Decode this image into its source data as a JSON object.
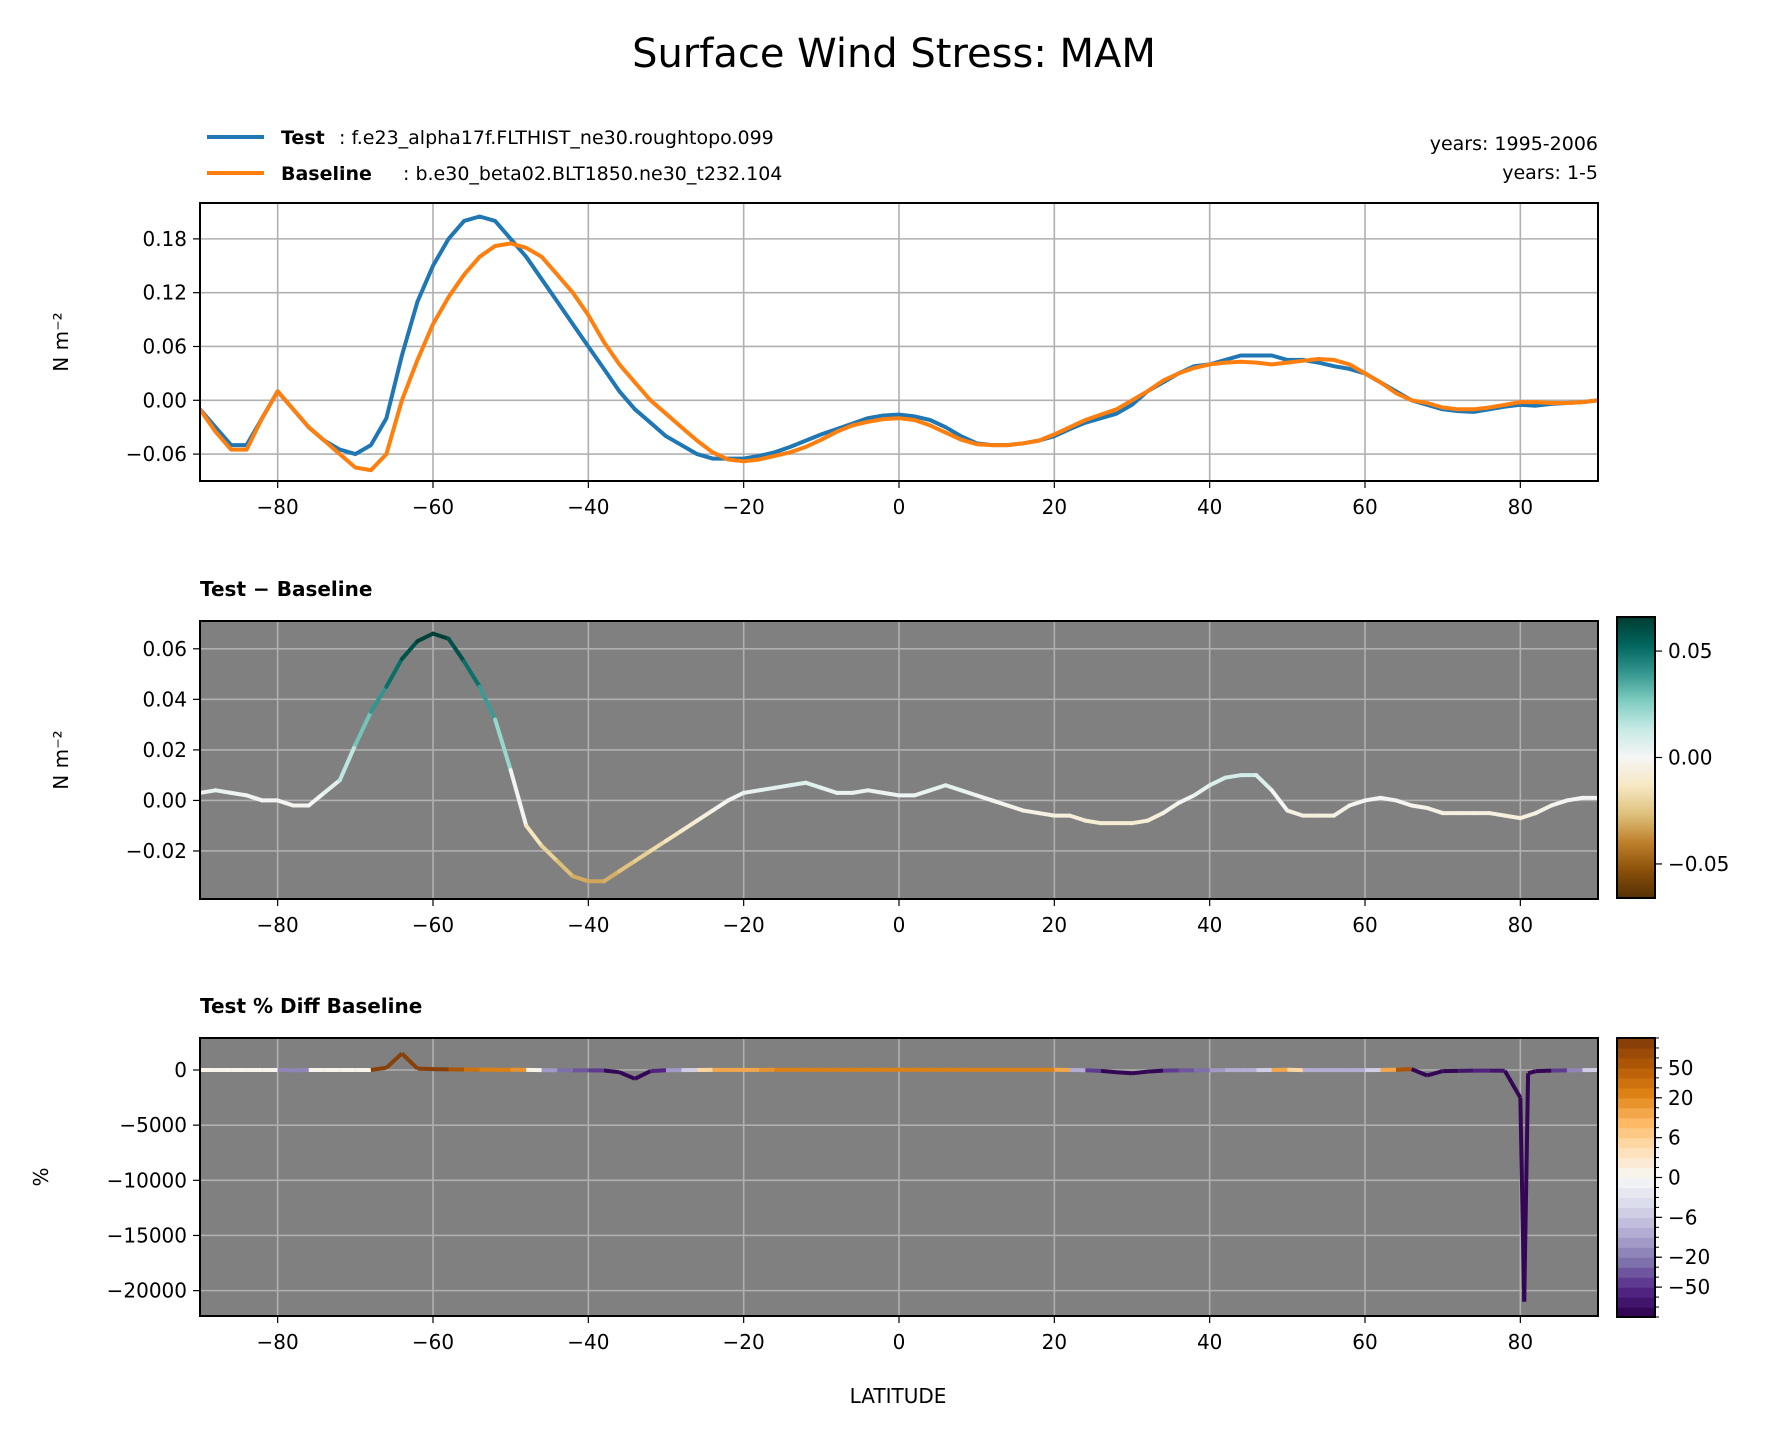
{
  "figure": {
    "title": "Surface Wind Stress: MAM",
    "legend": {
      "test": {
        "label": "Test",
        "case": ": f.e23_alpha17f.FLTHIST_ne30.roughtopo.099",
        "color": "#1f77b4",
        "years": "years: 1995-2006"
      },
      "baseline": {
        "label": "Baseline",
        "case": ": b.e30_beta02.BLT1850.ne30_t232.104",
        "color": "#ff7f0e",
        "years": "years: 1-5"
      }
    },
    "xlabel": "LATITUDE"
  },
  "chart_data": [
    {
      "type": "line",
      "name": "means",
      "ylabel": "N m⁻²",
      "xlim": [
        -90,
        90
      ],
      "ylim": [
        -0.09,
        0.22
      ],
      "xticks": [
        "−80",
        "−60",
        "−40",
        "−20",
        "0",
        "20",
        "40",
        "60",
        "80"
      ],
      "yticks": [
        "−0.06",
        "0.00",
        "0.06",
        "0.12",
        "0.18"
      ],
      "grid": true,
      "series": [
        {
          "name": "Test",
          "color": "#1f77b4",
          "x": [
            -90,
            -88,
            -86,
            -84,
            -82,
            -80,
            -78,
            -76,
            -74,
            -72,
            -70,
            -68,
            -66,
            -64,
            -62,
            -60,
            -58,
            -56,
            -54,
            -52,
            -50,
            -48,
            -46,
            -44,
            -42,
            -40,
            -38,
            -36,
            -34,
            -32,
            -30,
            -28,
            -26,
            -24,
            -22,
            -20,
            -18,
            -16,
            -14,
            -12,
            -10,
            -8,
            -6,
            -4,
            -2,
            0,
            2,
            4,
            6,
            8,
            10,
            12,
            14,
            16,
            18,
            20,
            22,
            24,
            26,
            28,
            30,
            32,
            34,
            36,
            38,
            40,
            42,
            44,
            46,
            48,
            50,
            52,
            54,
            56,
            58,
            60,
            62,
            64,
            66,
            68,
            70,
            72,
            74,
            76,
            78,
            80,
            82,
            84,
            86,
            88,
            90
          ],
          "y": [
            -0.01,
            -0.03,
            -0.05,
            -0.05,
            -0.02,
            0.01,
            -0.01,
            -0.03,
            -0.045,
            -0.055,
            -0.06,
            -0.05,
            -0.02,
            0.05,
            0.11,
            0.15,
            0.18,
            0.2,
            0.205,
            0.2,
            0.18,
            0.16,
            0.135,
            0.11,
            0.085,
            0.06,
            0.035,
            0.01,
            -0.01,
            -0.025,
            -0.04,
            -0.05,
            -0.06,
            -0.065,
            -0.065,
            -0.065,
            -0.062,
            -0.058,
            -0.052,
            -0.045,
            -0.038,
            -0.032,
            -0.026,
            -0.02,
            -0.017,
            -0.016,
            -0.018,
            -0.022,
            -0.03,
            -0.04,
            -0.048,
            -0.05,
            -0.05,
            -0.048,
            -0.045,
            -0.04,
            -0.032,
            -0.025,
            -0.02,
            -0.015,
            -0.005,
            0.01,
            0.02,
            0.03,
            0.038,
            0.04,
            0.045,
            0.05,
            0.05,
            0.05,
            0.045,
            0.045,
            0.042,
            0.038,
            0.035,
            0.03,
            0.02,
            0.01,
            0.0,
            -0.005,
            -0.01,
            -0.012,
            -0.013,
            -0.01,
            -0.007,
            -0.005,
            -0.006,
            -0.004,
            -0.003,
            -0.002,
            0.0
          ]
        },
        {
          "name": "Baseline",
          "color": "#ff7f0e",
          "x": [
            -90,
            -88,
            -86,
            -84,
            -82,
            -80,
            -78,
            -76,
            -74,
            -72,
            -70,
            -68,
            -66,
            -64,
            -62,
            -60,
            -58,
            -56,
            -54,
            -52,
            -50,
            -48,
            -46,
            -44,
            -42,
            -40,
            -38,
            -36,
            -34,
            -32,
            -30,
            -28,
            -26,
            -24,
            -22,
            -20,
            -18,
            -16,
            -14,
            -12,
            -10,
            -8,
            -6,
            -4,
            -2,
            0,
            2,
            4,
            6,
            8,
            10,
            12,
            14,
            16,
            18,
            20,
            22,
            24,
            26,
            28,
            30,
            32,
            34,
            36,
            38,
            40,
            42,
            44,
            46,
            48,
            50,
            52,
            54,
            56,
            58,
            60,
            62,
            64,
            66,
            68,
            70,
            72,
            74,
            76,
            78,
            80,
            82,
            84,
            86,
            88,
            90
          ],
          "y": [
            -0.01,
            -0.035,
            -0.055,
            -0.055,
            -0.02,
            0.01,
            -0.01,
            -0.03,
            -0.045,
            -0.06,
            -0.075,
            -0.078,
            -0.06,
            0.0,
            0.045,
            0.085,
            0.115,
            0.14,
            0.16,
            0.172,
            0.175,
            0.17,
            0.16,
            0.14,
            0.12,
            0.095,
            0.065,
            0.04,
            0.02,
            0.0,
            -0.015,
            -0.03,
            -0.045,
            -0.058,
            -0.066,
            -0.068,
            -0.066,
            -0.062,
            -0.058,
            -0.052,
            -0.044,
            -0.035,
            -0.028,
            -0.024,
            -0.021,
            -0.02,
            -0.022,
            -0.028,
            -0.036,
            -0.044,
            -0.049,
            -0.05,
            -0.05,
            -0.048,
            -0.045,
            -0.038,
            -0.03,
            -0.022,
            -0.016,
            -0.01,
            0.0,
            0.01,
            0.022,
            0.03,
            0.036,
            0.04,
            0.042,
            0.043,
            0.042,
            0.04,
            0.042,
            0.044,
            0.046,
            0.045,
            0.04,
            0.03,
            0.02,
            0.008,
            0.0,
            -0.003,
            -0.008,
            -0.01,
            -0.01,
            -0.008,
            -0.005,
            -0.002,
            -0.002,
            -0.003,
            -0.003,
            -0.002,
            0.0
          ]
        }
      ]
    },
    {
      "type": "line",
      "name": "difference",
      "title": "Test − Baseline",
      "ylabel": "N m⁻²",
      "xlim": [
        -90,
        90
      ],
      "ylim": [
        -0.039,
        0.071
      ],
      "xticks": [
        "−80",
        "−60",
        "−40",
        "−20",
        "0",
        "20",
        "40",
        "60",
        "80"
      ],
      "yticks": [
        "−0.02",
        "0.00",
        "0.02",
        "0.04",
        "0.06"
      ],
      "grid": true,
      "colormap": "BrBG",
      "clim": [
        -0.066,
        0.066
      ],
      "colorbar_ticks": [
        "−0.05",
        "0.00",
        "0.05"
      ],
      "colorbar_values": [
        -0.05,
        0.0,
        0.05
      ],
      "x": [
        -90,
        -88,
        -86,
        -84,
        -82,
        -80,
        -78,
        -76,
        -74,
        -72,
        -70,
        -68,
        -66,
        -64,
        -62,
        -60,
        -58,
        -56,
        -54,
        -52,
        -50,
        -48,
        -46,
        -44,
        -42,
        -40,
        -38,
        -36,
        -34,
        -32,
        -30,
        -28,
        -26,
        -24,
        -22,
        -20,
        -18,
        -16,
        -14,
        -12,
        -10,
        -8,
        -6,
        -4,
        -2,
        0,
        2,
        4,
        6,
        8,
        10,
        12,
        14,
        16,
        18,
        20,
        22,
        24,
        26,
        28,
        30,
        32,
        34,
        36,
        38,
        40,
        42,
        44,
        46,
        48,
        50,
        52,
        54,
        56,
        58,
        60,
        62,
        64,
        66,
        68,
        70,
        72,
        74,
        76,
        78,
        80,
        82,
        84,
        86,
        88,
        90
      ],
      "y": [
        0.003,
        0.004,
        0.003,
        0.002,
        0.0,
        0.0,
        -0.002,
        -0.002,
        0.003,
        0.008,
        0.022,
        0.035,
        0.045,
        0.056,
        0.063,
        0.066,
        0.064,
        0.055,
        0.045,
        0.032,
        0.012,
        -0.01,
        -0.018,
        -0.024,
        -0.03,
        -0.032,
        -0.032,
        -0.028,
        -0.024,
        -0.02,
        -0.016,
        -0.012,
        -0.008,
        -0.004,
        0.0,
        0.003,
        0.004,
        0.005,
        0.006,
        0.007,
        0.005,
        0.003,
        0.003,
        0.004,
        0.003,
        0.002,
        0.002,
        0.004,
        0.006,
        0.004,
        0.002,
        0.0,
        -0.002,
        -0.004,
        -0.005,
        -0.006,
        -0.006,
        -0.008,
        -0.009,
        -0.009,
        -0.009,
        -0.008,
        -0.005,
        -0.001,
        0.002,
        0.006,
        0.009,
        0.01,
        0.01,
        0.004,
        -0.004,
        -0.006,
        -0.006,
        -0.006,
        -0.002,
        0.0,
        0.001,
        0.0,
        -0.002,
        -0.003,
        -0.005,
        -0.005,
        -0.005,
        -0.005,
        -0.006,
        -0.007,
        -0.005,
        -0.002,
        0.0,
        0.001,
        0.001
      ]
    },
    {
      "type": "line",
      "name": "percent_difference",
      "title": "Test % Diff Baseline",
      "ylabel": "%",
      "xlabel": "LATITUDE",
      "xlim": [
        -90,
        90
      ],
      "ylim": [
        -22300,
        2900
      ],
      "xticks": [
        "−80",
        "−60",
        "−40",
        "−20",
        "0",
        "20",
        "40",
        "60",
        "80"
      ],
      "yticks": [
        "−20000",
        "−15000",
        "−10000",
        "−5000",
        "0"
      ],
      "grid": true,
      "colormap": "PuOr_r",
      "colorbar_levels": [
        -80,
        -70,
        -60,
        -50,
        -40,
        -30,
        -20,
        -15,
        -10,
        -8,
        -6,
        -4,
        -2,
        -1,
        0,
        1,
        2,
        4,
        6,
        8,
        10,
        15,
        20,
        30,
        40,
        50,
        60,
        70,
        80
      ],
      "colorbar_ticks": [
        "−50",
        "−20",
        "−6",
        "0",
        "6",
        "20",
        "50"
      ],
      "colorbar_values": [
        -50,
        -20,
        -6,
        0,
        6,
        20,
        50
      ],
      "x": [
        -90,
        -88,
        -86,
        -84,
        -82,
        -80,
        -78,
        -76,
        -74,
        -72,
        -70,
        -68,
        -66,
        -64,
        -62,
        -60,
        -58,
        -56,
        -54,
        -52,
        -50,
        -48,
        -46,
        -44,
        -42,
        -40,
        -38,
        -36,
        -34,
        -32,
        -30,
        -28,
        -26,
        -24,
        -22,
        -20,
        -18,
        -16,
        -14,
        -12,
        -10,
        -8,
        -6,
        -4,
        -2,
        0,
        2,
        4,
        6,
        8,
        10,
        12,
        14,
        16,
        18,
        20,
        22,
        24,
        26,
        28,
        30,
        32,
        34,
        36,
        38,
        40,
        42,
        44,
        46,
        48,
        50,
        52,
        54,
        56,
        58,
        60,
        62,
        64,
        66,
        68,
        70,
        72,
        74,
        76,
        78,
        80,
        80.5,
        81,
        82,
        84,
        86,
        88,
        90
      ],
      "y": [
        0,
        0,
        0,
        0,
        0,
        0,
        -40,
        0,
        0,
        0,
        0,
        0,
        200,
        1500,
        120,
        80,
        60,
        40,
        30,
        20,
        20,
        10,
        -10,
        -20,
        -30,
        -40,
        -50,
        -200,
        -800,
        -100,
        -20,
        -10,
        0,
        10,
        10,
        10,
        10,
        20,
        20,
        20,
        20,
        20,
        20,
        20,
        20,
        20,
        20,
        20,
        20,
        20,
        20,
        20,
        20,
        20,
        20,
        20,
        0,
        -20,
        -80,
        -200,
        -300,
        -150,
        -60,
        -40,
        -30,
        -20,
        -10,
        -10,
        -10,
        0,
        20,
        -10,
        -10,
        -10,
        -10,
        -10,
        0,
        20,
        80,
        -500,
        -100,
        -80,
        -60,
        -60,
        -70,
        -2500,
        -21000,
        -300,
        -100,
        -60,
        -30,
        -10,
        0
      ]
    }
  ]
}
